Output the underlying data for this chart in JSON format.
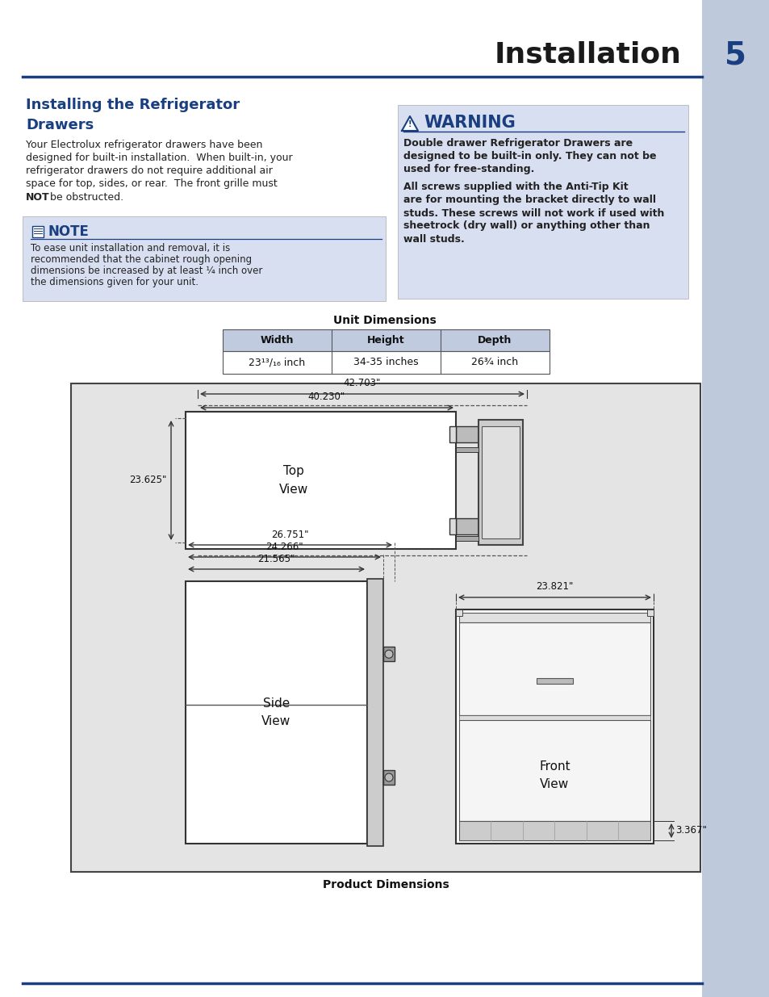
{
  "page_title": "Installation",
  "page_number": "5",
  "section_title_line1": "Installing the Refrigerator",
  "section_title_line2": "Drawers",
  "body_lines": [
    "Your Electrolux refrigerator drawers have been",
    "designed for built-in installation.  When built-in, your",
    "refrigerator drawers do not require additional air",
    "space for top, sides, or rear.  The front grille must"
  ],
  "body_not": "NOT",
  "body_not_end": " be obstructed.",
  "note_title": "NOTE",
  "note_lines": [
    "To ease unit installation and removal, it is",
    "recommended that the cabinet rough opening",
    "dimensions be increased by at least ¼ inch over",
    "the dimensions given for your unit."
  ],
  "warning_title": "WARNING",
  "warning_lines1": [
    "Double drawer Refrigerator Drawers are",
    "designed to be built-in only. They can not be",
    "used for free-standing."
  ],
  "warning_lines2": [
    "All screws supplied with the Anti-Tip Kit",
    "are for mounting the bracket directly to wall",
    "studs. These screws will not work if used with",
    "sheetrock (dry wall) or anything other than",
    "wall studs."
  ],
  "table_title": "Unit Dimensions",
  "table_headers": [
    "Width",
    "Height",
    "Depth"
  ],
  "table_values": [
    "23¹³/₁₆ inch",
    "34-35 inches",
    "26¾ inch"
  ],
  "diagram_caption": "Product Dimensions",
  "dim_42703": "42.703\"",
  "dim_40230": "40.230\"",
  "dim_23625": "23.625\"",
  "dim_26751": "26.751\"",
  "dim_24266": "24.266\"",
  "dim_21565": "21.565\"",
  "dim_23821": "23.821\"",
  "dim_3367": "3.367\"",
  "label_top": "Top\nView",
  "label_side": "Side\nView",
  "label_front": "Front\nView",
  "bg_color": "#ffffff",
  "sidebar_color": "#bfc9dc",
  "note_bg": "#d8dff0",
  "warning_bg": "#d8dff0",
  "diagram_bg": "#e4e4e4",
  "blue_color": "#1a3f80",
  "dark_color": "#1a1a1a",
  "table_header_bg": "#c0cbe0",
  "line_color": "#1a3f80"
}
